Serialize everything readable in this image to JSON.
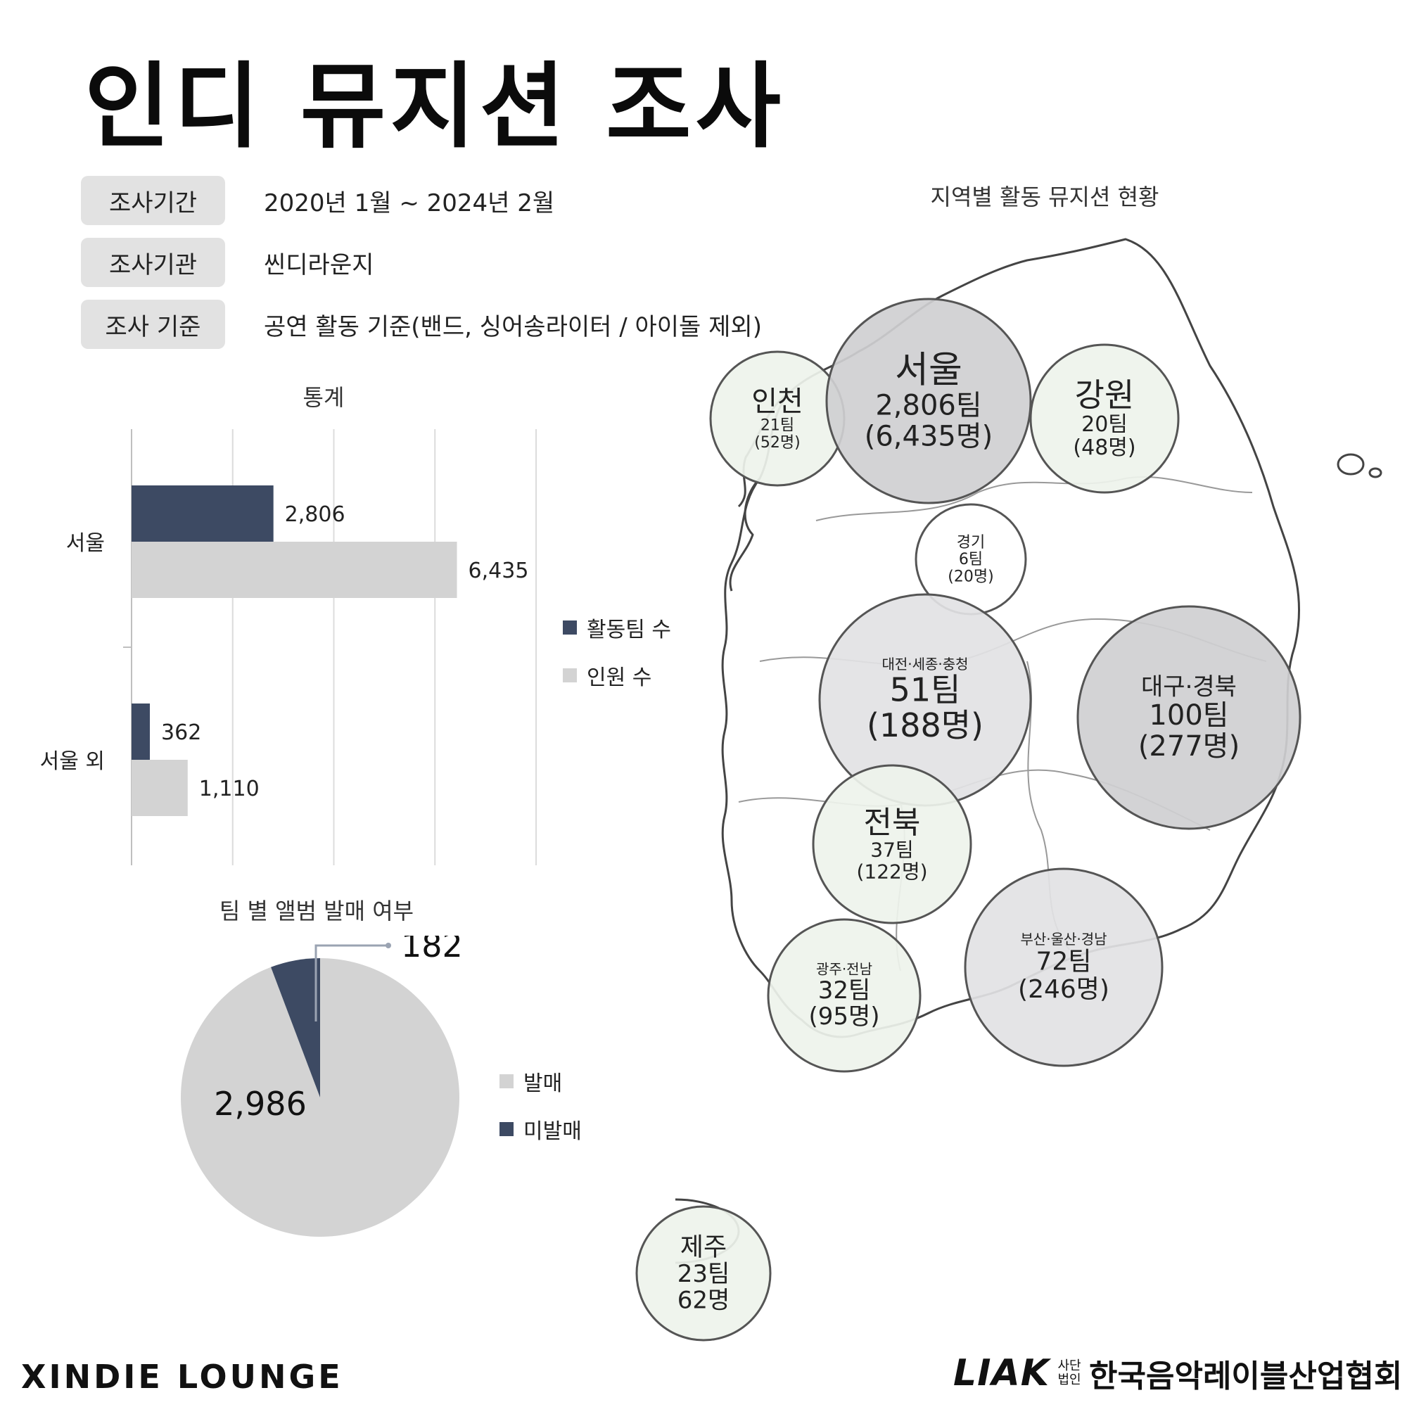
{
  "title": "인디 뮤지션 조사",
  "info": [
    {
      "label": "조사기간",
      "value": "2020년 1월 ~ 2024년 2월"
    },
    {
      "label": "조사기관",
      "value": "씬디라운지"
    },
    {
      "label": "조사 기준",
      "value": "공연 활동 기준(밴드, 싱어송라이터 / 아이돌 제외)"
    }
  ],
  "map_title": "지역별 활동 뮤지션 현황",
  "colors": {
    "navy": "#3d4a63",
    "light_gray": "#d3d3d3",
    "bubble_dark": "#cfcfd1",
    "bubble_light": "#eef3ec",
    "bubble_mid": "#e2e2e4"
  },
  "chart_data": [
    {
      "type": "bar",
      "orientation": "horizontal",
      "title": "통계",
      "categories": [
        "서울",
        "서울 외"
      ],
      "series": [
        {
          "name": "활동팀 수",
          "values": [
            2806,
            362
          ],
          "labels": [
            "2,806",
            "362"
          ],
          "color": "#3d4a63"
        },
        {
          "name": "인원 수",
          "values": [
            6435,
            1110
          ],
          "labels": [
            "6,435",
            "1,110"
          ],
          "color": "#d3d3d3"
        }
      ],
      "xlim": [
        0,
        8000
      ],
      "grid": true,
      "legend": "right"
    },
    {
      "type": "pie",
      "title": "팀 별 앨범 발매 여부",
      "slices": [
        {
          "name": "발매",
          "value": 2986,
          "label": "2,986",
          "color": "#d3d3d3"
        },
        {
          "name": "미발매",
          "value": 182,
          "label": "182",
          "color": "#3d4a63"
        }
      ],
      "legend": "right"
    }
  ],
  "regions": [
    {
      "name": "인천",
      "teams": "21팀",
      "people": "(52명)",
      "shade": "light"
    },
    {
      "name": "서울",
      "teams": "2,806팀",
      "people": "(6,435명)",
      "shade": "dark"
    },
    {
      "name": "강원",
      "teams": "20팀",
      "people": "(48명)",
      "shade": "light"
    },
    {
      "name": "경기",
      "teams": "6팀",
      "people": "(20명)",
      "shade": "white"
    },
    {
      "name": "대전·세종·충청",
      "teams": "51팀",
      "people": "(188명)",
      "shade": "mid"
    },
    {
      "name": "대구·경북",
      "teams": "100팀",
      "people": "(277명)",
      "shade": "dark"
    },
    {
      "name": "전북",
      "teams": "37팀",
      "people": "(122명)",
      "shade": "light"
    },
    {
      "name": "부산·울산·경남",
      "teams": "72팀",
      "people": "(246명)",
      "shade": "mid"
    },
    {
      "name": "광주·전남",
      "teams": "32팀",
      "people": "(95명)",
      "shade": "light"
    },
    {
      "name": "제주",
      "teams": "23팀",
      "people": "62명",
      "shade": "light"
    }
  ],
  "brand": {
    "left": "XINDIE LOUNGE",
    "right_logo": "LIAK",
    "right_sub_1": "사단",
    "right_sub_2": "법인",
    "right_org": "한국음악레이블산업협회"
  }
}
